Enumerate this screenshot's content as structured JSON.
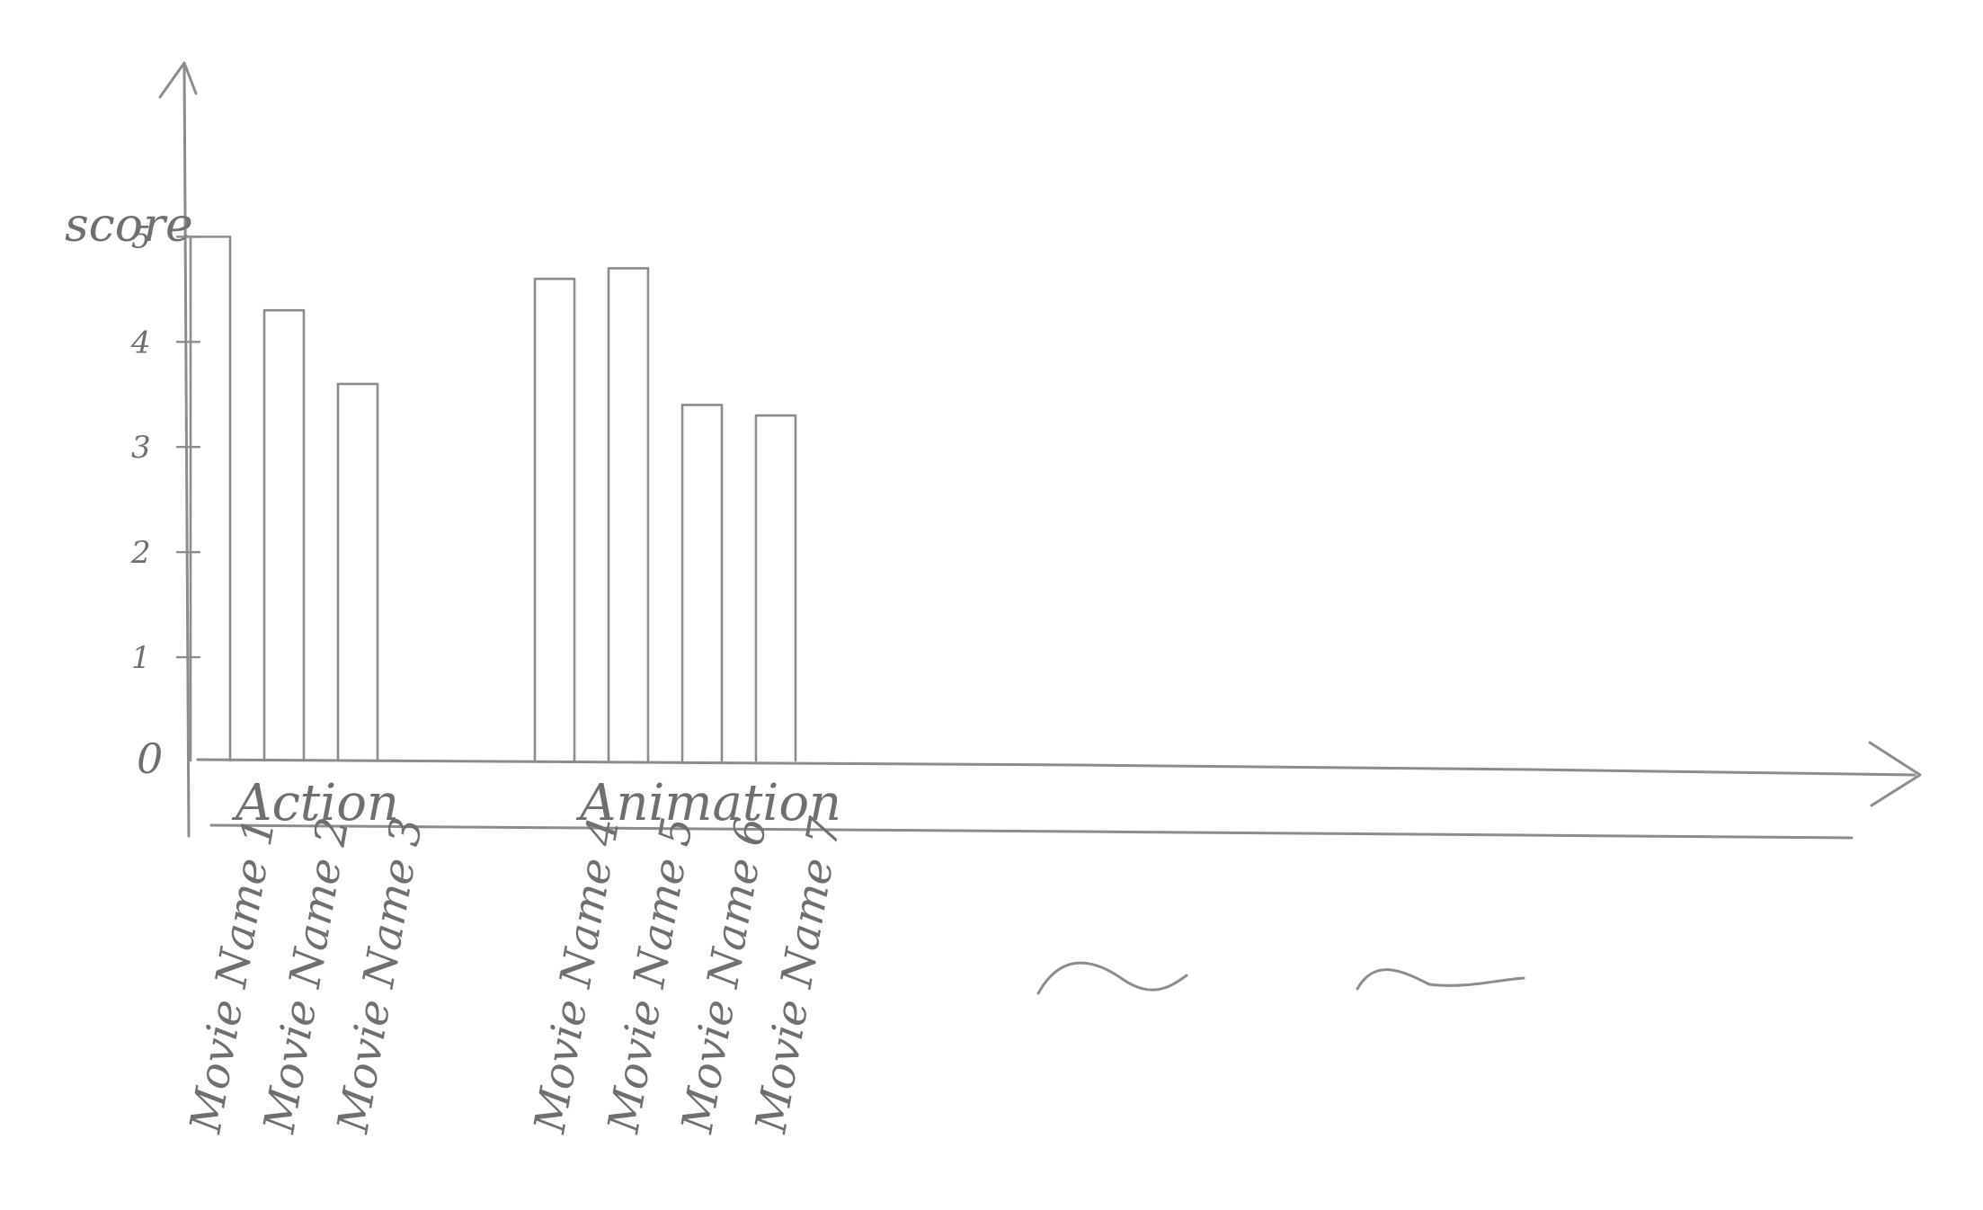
{
  "chart_data": {
    "type": "bar",
    "ylabel": "score",
    "xlabel": "",
    "ylim": [
      0,
      5.2
    ],
    "yticks": [
      {
        "value": 0,
        "label": "0"
      },
      {
        "value": 1,
        "label": "1"
      },
      {
        "value": 2,
        "label": "2"
      },
      {
        "value": 3,
        "label": "3"
      },
      {
        "value": 4,
        "label": "4"
      },
      {
        "value": 5,
        "label": "5"
      }
    ],
    "groups": [
      {
        "name": "Action",
        "categories": [
          "Movie Name 1",
          "Movie Name 2",
          "Movie Name 3"
        ],
        "values": [
          5.0,
          4.3,
          3.6
        ]
      },
      {
        "name": "Animation",
        "categories": [
          "Movie Name 4",
          "Movie Name 5",
          "Movie Name 6",
          "Movie Name 7"
        ],
        "values": [
          4.6,
          4.7,
          3.4,
          3.3
        ]
      }
    ],
    "trailing_marks": [
      "~",
      "~"
    ],
    "grid": false,
    "legend": "none",
    "colors": {
      "stroke": "#8c8c8c",
      "text": "#6f6f6f"
    }
  }
}
